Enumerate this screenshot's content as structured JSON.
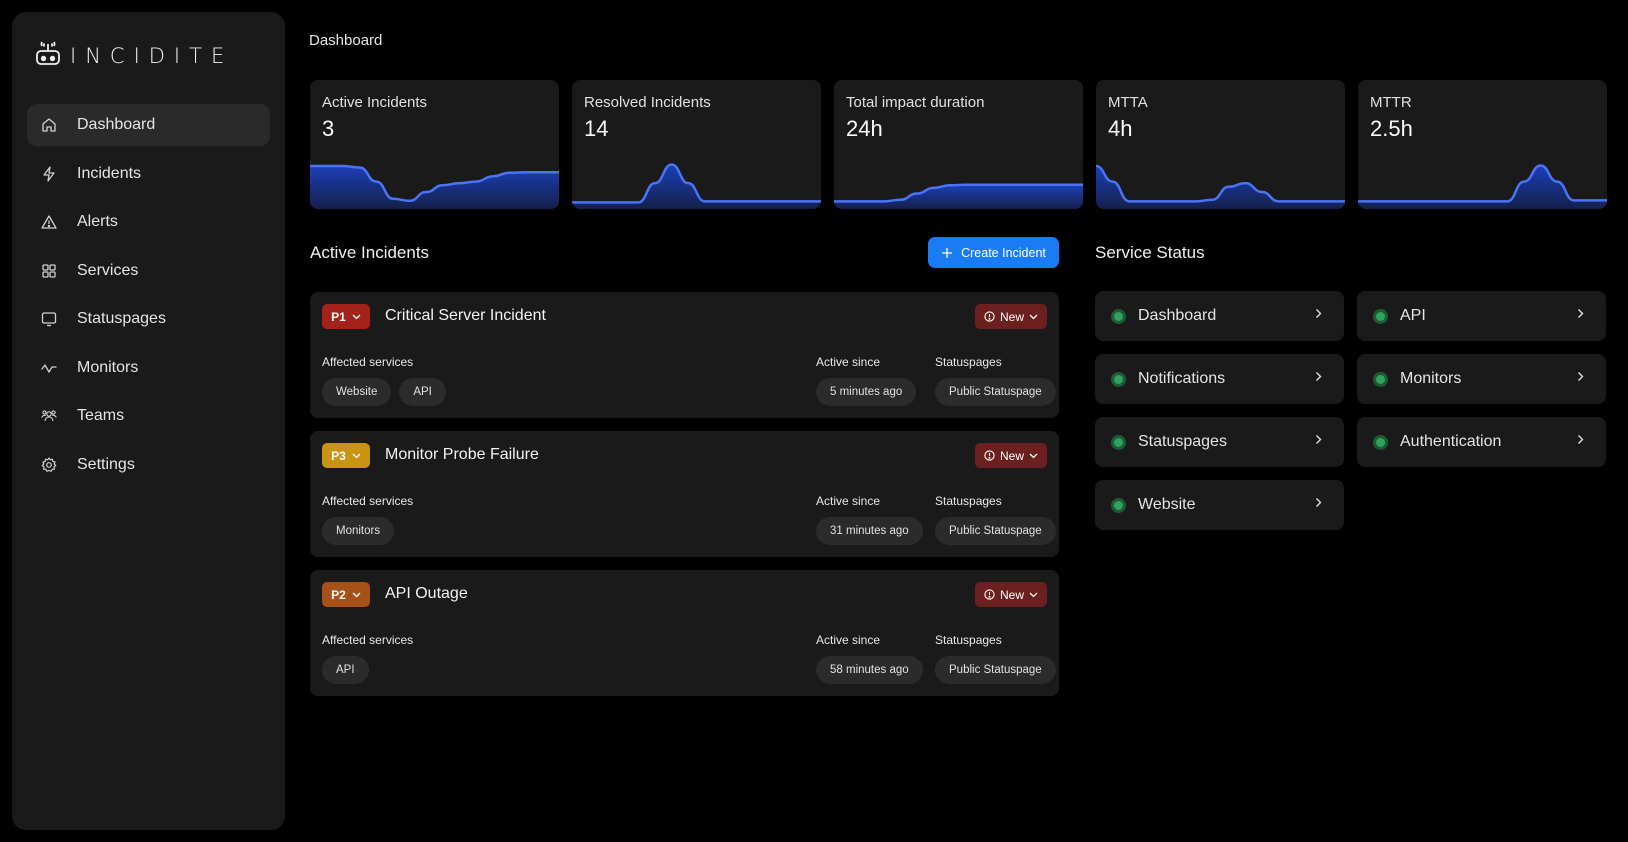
{
  "app": {
    "name": "INCIDITE",
    "page_title": "Dashboard"
  },
  "sidebar": {
    "items": [
      {
        "label": "Dashboard",
        "icon": "home-icon",
        "active": true
      },
      {
        "label": "Incidents",
        "icon": "lightning-icon",
        "active": false
      },
      {
        "label": "Alerts",
        "icon": "warning-icon",
        "active": false
      },
      {
        "label": "Services",
        "icon": "grid-icon",
        "active": false
      },
      {
        "label": "Statuspages",
        "icon": "monitor-icon",
        "active": false
      },
      {
        "label": "Monitors",
        "icon": "activity-icon",
        "active": false
      },
      {
        "label": "Teams",
        "icon": "users-icon",
        "active": false
      },
      {
        "label": "Settings",
        "icon": "gear-icon",
        "active": false
      }
    ]
  },
  "stats": [
    {
      "label": "Active Incidents",
      "value": "3",
      "sparkline": [
        0.75,
        0.75,
        0.75,
        0.72,
        0.45,
        0.12,
        0.08,
        0.25,
        0.38,
        0.42,
        0.45,
        0.55,
        0.62,
        0.63,
        0.63,
        0.63
      ]
    },
    {
      "label": "Resolved Incidents",
      "value": "14",
      "sparkline": [
        0.05,
        0.05,
        0.05,
        0.05,
        0.05,
        0.42,
        0.78,
        0.42,
        0.07,
        0.07,
        0.07,
        0.07,
        0.07,
        0.07,
        0.07,
        0.07
      ]
    },
    {
      "label": "Total impact duration",
      "value": "24h",
      "sparkline": [
        0.07,
        0.07,
        0.07,
        0.07,
        0.1,
        0.22,
        0.33,
        0.38,
        0.39,
        0.39,
        0.39,
        0.39,
        0.39,
        0.39,
        0.39,
        0.39
      ]
    },
    {
      "label": "MTTA",
      "value": "4h",
      "sparkline": [
        0.75,
        0.45,
        0.07,
        0.07,
        0.07,
        0.07,
        0.07,
        0.1,
        0.35,
        0.42,
        0.25,
        0.07,
        0.07,
        0.07,
        0.07,
        0.07
      ]
    },
    {
      "label": "MTTR",
      "value": "2.5h",
      "sparkline": [
        0.07,
        0.07,
        0.07,
        0.07,
        0.07,
        0.07,
        0.07,
        0.07,
        0.07,
        0.07,
        0.45,
        0.76,
        0.45,
        0.09,
        0.09,
        0.09
      ]
    }
  ],
  "active_incidents": {
    "title": "Active Incidents",
    "create_button": "Create Incident",
    "labels": {
      "affected": "Affected services",
      "active_since": "Active since",
      "statuspages": "Statuspages"
    },
    "items": [
      {
        "priority": "P1",
        "priority_color": "#a3231b",
        "title": "Critical Server Incident",
        "status": "New",
        "services": [
          "Website",
          "API"
        ],
        "active_since": "5 minutes ago",
        "statuspage": "Public Statuspage"
      },
      {
        "priority": "P3",
        "priority_color": "#c99414",
        "title": "Monitor Probe Failure",
        "status": "New",
        "services": [
          "Monitors"
        ],
        "active_since": "31 minutes ago",
        "statuspage": "Public Statuspage"
      },
      {
        "priority": "P2",
        "priority_color": "#a65117",
        "title": "API Outage",
        "status": "New",
        "services": [
          "API"
        ],
        "active_since": "58 minutes ago",
        "statuspage": "Public Statuspage"
      }
    ]
  },
  "service_status": {
    "title": "Service Status",
    "items": [
      {
        "name": "Dashboard",
        "status": "operational"
      },
      {
        "name": "API",
        "status": "operational"
      },
      {
        "name": "Notifications",
        "status": "operational"
      },
      {
        "name": "Monitors",
        "status": "operational"
      },
      {
        "name": "Statuspages",
        "status": "operational"
      },
      {
        "name": "Authentication",
        "status": "operational"
      },
      {
        "name": "Website",
        "status": "operational"
      }
    ]
  },
  "colors": {
    "accent": "#1a7cf5",
    "sparkline": "#4a74f5",
    "status_new": "#6b1f1f",
    "operational": "#2fa35e"
  }
}
